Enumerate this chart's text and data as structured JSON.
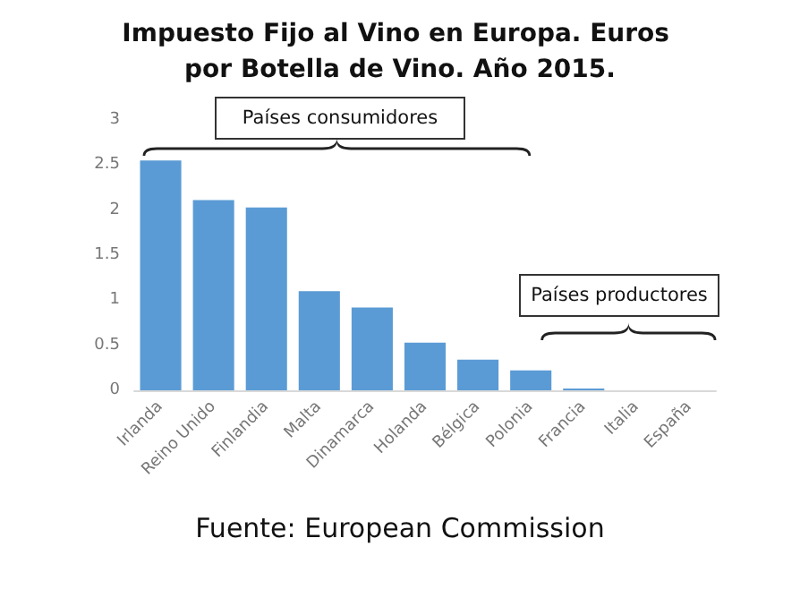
{
  "chart_data": {
    "type": "bar",
    "title": "Impuesto Fijo al Vino en Europa. Euros por Botella de Vino. Año 2015.",
    "categories": [
      "Irlanda",
      "Reino Unido",
      "Finlandia",
      "Malta",
      "Dinamarca",
      "Holanda",
      "Bélgica",
      "Polonia",
      "Francia",
      "Italia",
      "España"
    ],
    "values": [
      2.55,
      2.11,
      2.03,
      1.1,
      0.92,
      0.53,
      0.34,
      0.22,
      0.02,
      0,
      0
    ],
    "color": "#5b9bd5",
    "ylim": [
      0,
      3
    ],
    "yticks": [
      0,
      0.5,
      1,
      1.5,
      2,
      2.5,
      3
    ],
    "grid": false,
    "annotations": [
      "Países consumidores",
      "Países productores",
      "Fuente: European Commission"
    ]
  }
}
